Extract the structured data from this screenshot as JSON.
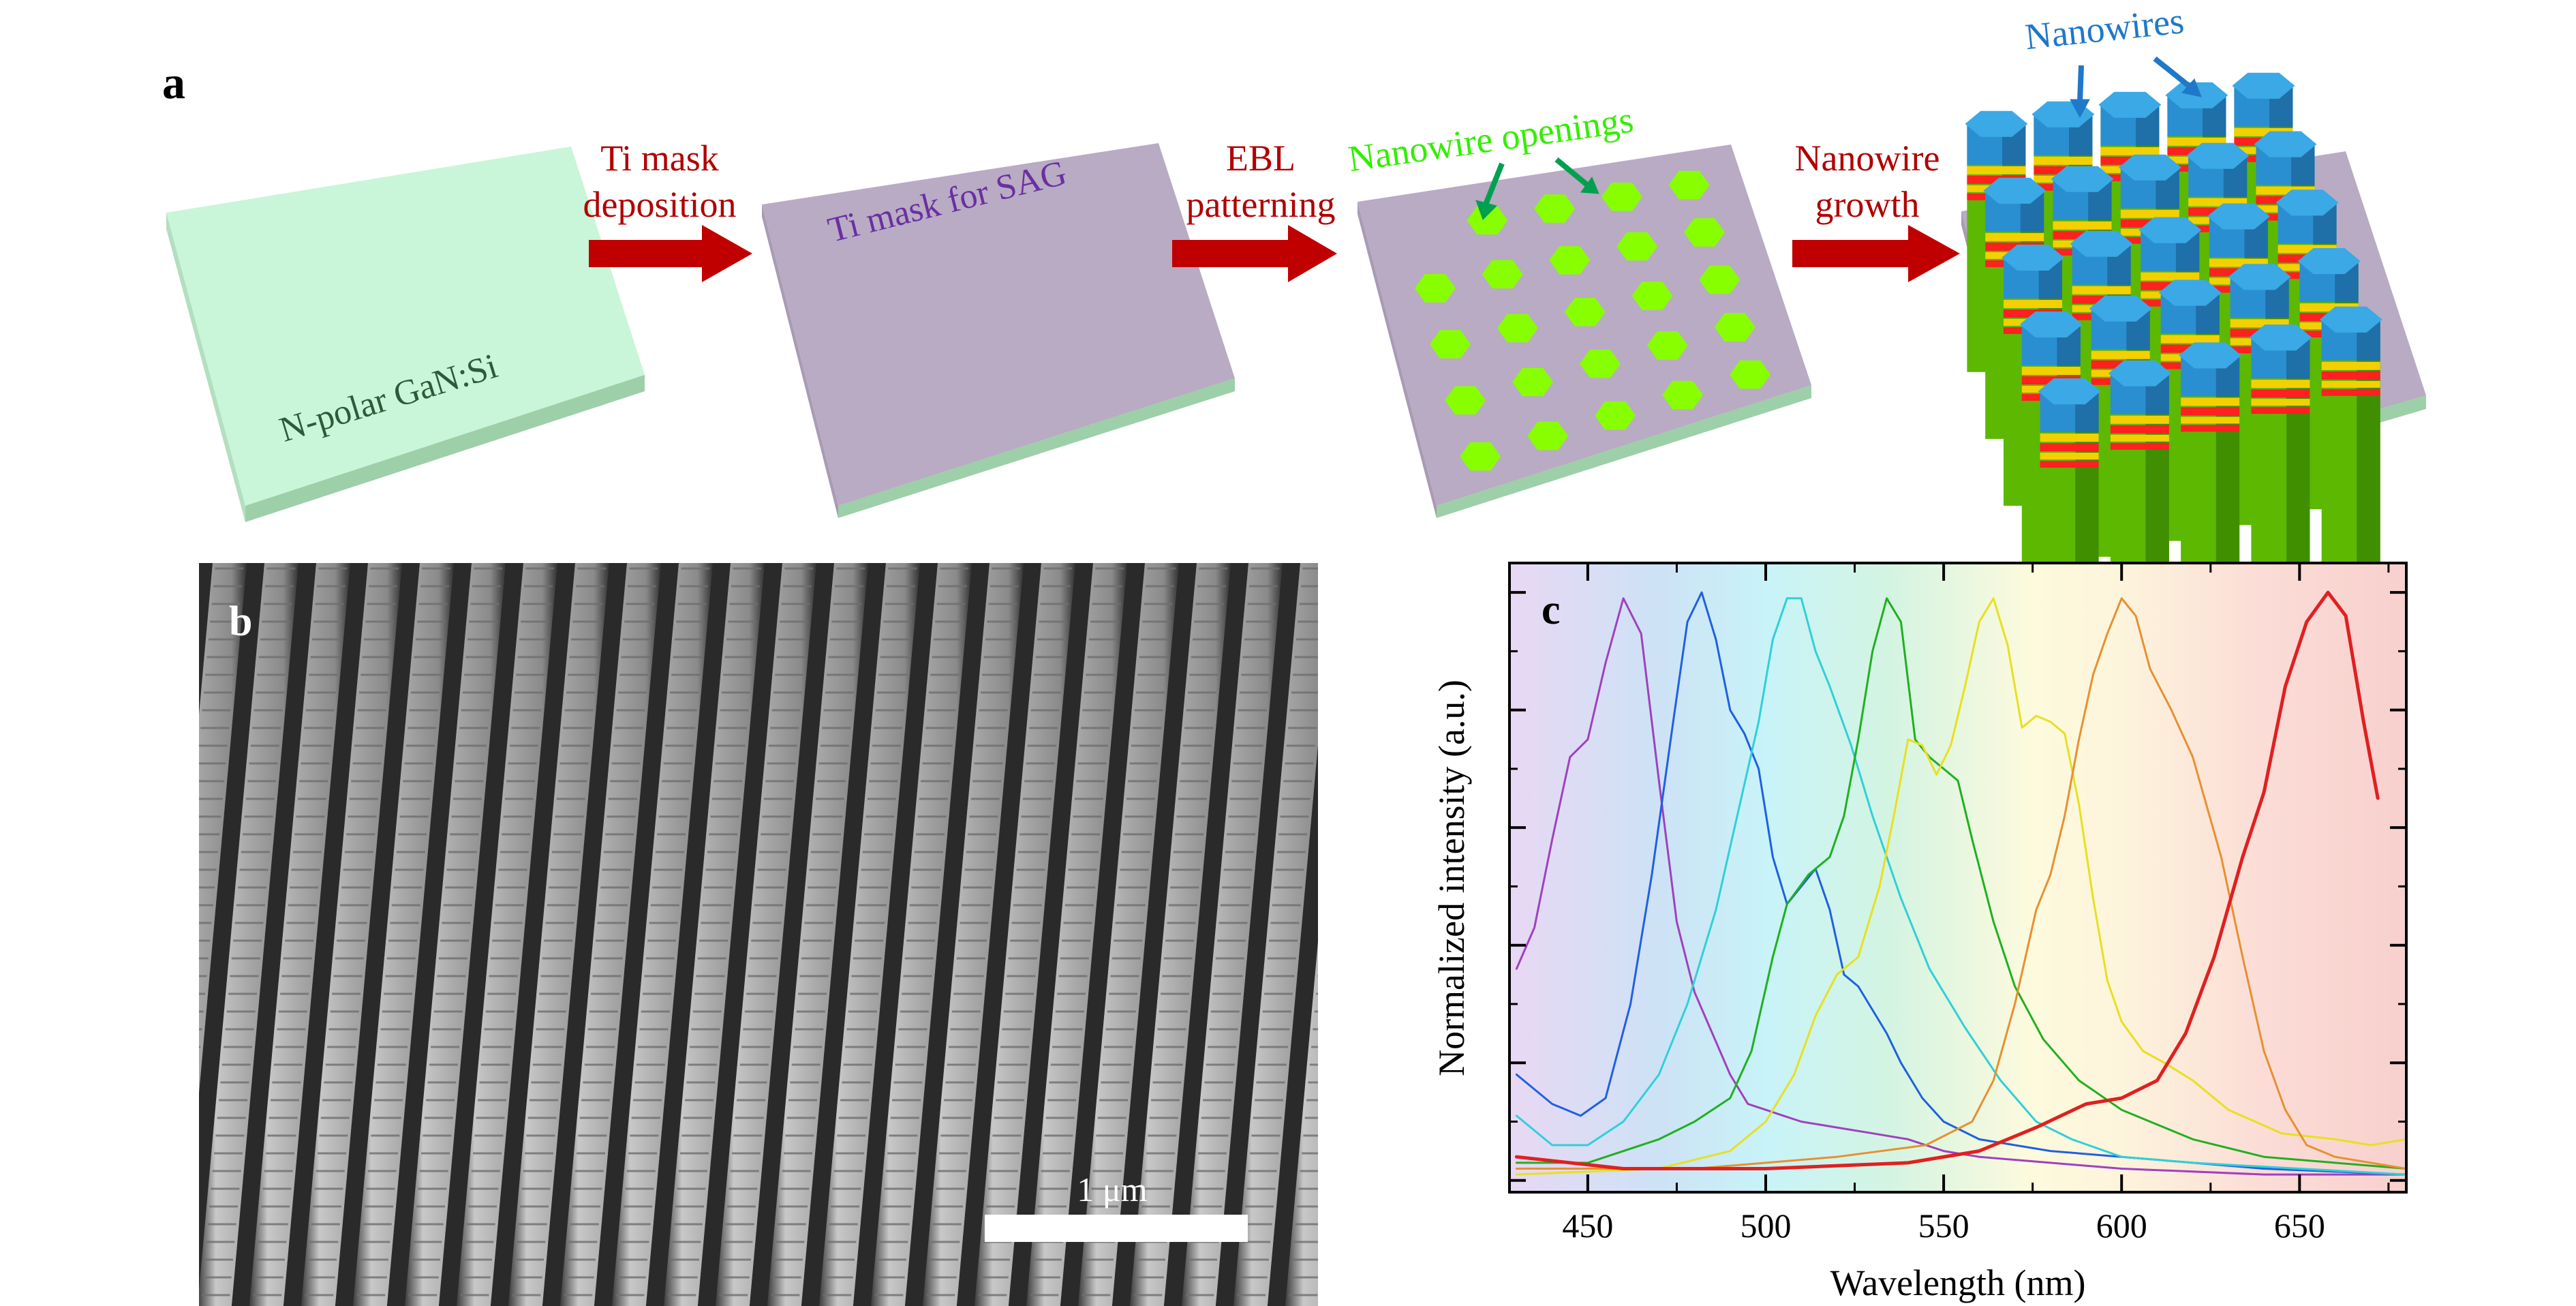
{
  "panel_a": {
    "letter": "a",
    "step1": {
      "substrate_label": "N-polar GaN:Si"
    },
    "arrow1": {
      "line1": "Ti mask",
      "line2": "deposition"
    },
    "step2": {
      "mask_label": "Ti mask for SAG"
    },
    "arrow2": {
      "line1": "EBL",
      "line2": "patterning"
    },
    "step3": {
      "openings_label": "Nanowire openings"
    },
    "arrow3": {
      "line1": "Nanowire",
      "line2": "growth"
    },
    "step4": {
      "nanowires_label": "Nanowires"
    },
    "colors": {
      "substrate": "#c9f5d8",
      "mask": "#b8abc3",
      "opening": "#88ff00",
      "arrow": "#c00000",
      "arrow_text": "#b00000",
      "mask_text": "#6a2fa3",
      "openings_text": "#33ee00",
      "nanowire_top": "#3aa9e6",
      "nanowire_body": "#5cb800",
      "quantum_well_red": "#ff2020",
      "quantum_well_yellow": "#f4d000",
      "callout_arrow_green": "#00a050",
      "callout_arrow_blue": "#1f78c8"
    }
  },
  "panel_b": {
    "letter": "b",
    "scale_bar_label": "1 μm"
  },
  "panel_c": {
    "letter": "c",
    "chart_data": {
      "type": "line",
      "xlabel": "Wavelength (nm)",
      "ylabel": "Normalized intensity (a.u.)",
      "xlim": [
        428,
        680
      ],
      "ylim": [
        -0.02,
        1.05
      ],
      "xticks": [
        450,
        500,
        550,
        600,
        650
      ],
      "grid": false,
      "series": [
        {
          "color": "#a040c0",
          "line_width": 3,
          "points": [
            [
              430,
              0.36
            ],
            [
              435,
              0.43
            ],
            [
              440,
              0.58
            ],
            [
              445,
              0.72
            ],
            [
              450,
              0.75
            ],
            [
              455,
              0.88
            ],
            [
              460,
              0.99
            ],
            [
              465,
              0.93
            ],
            [
              470,
              0.68
            ],
            [
              475,
              0.44
            ],
            [
              480,
              0.32
            ],
            [
              485,
              0.25
            ],
            [
              490,
              0.18
            ],
            [
              495,
              0.13
            ],
            [
              500,
              0.12
            ],
            [
              505,
              0.11
            ],
            [
              510,
              0.1
            ],
            [
              520,
              0.09
            ],
            [
              530,
              0.08
            ],
            [
              540,
              0.07
            ],
            [
              550,
              0.05
            ],
            [
              560,
              0.04
            ],
            [
              580,
              0.03
            ],
            [
              600,
              0.02
            ],
            [
              640,
              0.01
            ],
            [
              680,
              0.01
            ]
          ]
        },
        {
          "color": "#2060e0",
          "line_width": 3,
          "points": [
            [
              430,
              0.18
            ],
            [
              440,
              0.13
            ],
            [
              448,
              0.11
            ],
            [
              455,
              0.14
            ],
            [
              462,
              0.3
            ],
            [
              468,
              0.52
            ],
            [
              474,
              0.78
            ],
            [
              478,
              0.95
            ],
            [
              482,
              1.0
            ],
            [
              486,
              0.92
            ],
            [
              490,
              0.8
            ],
            [
              494,
              0.76
            ],
            [
              498,
              0.7
            ],
            [
              502,
              0.55
            ],
            [
              506,
              0.47
            ],
            [
              510,
              0.5
            ],
            [
              514,
              0.53
            ],
            [
              518,
              0.46
            ],
            [
              522,
              0.35
            ],
            [
              526,
              0.33
            ],
            [
              530,
              0.29
            ],
            [
              534,
              0.25
            ],
            [
              538,
              0.2
            ],
            [
              544,
              0.14
            ],
            [
              550,
              0.1
            ],
            [
              560,
              0.07
            ],
            [
              580,
              0.05
            ],
            [
              600,
              0.04
            ],
            [
              640,
              0.02
            ],
            [
              680,
              0.01
            ]
          ]
        },
        {
          "color": "#30d0d8",
          "line_width": 3,
          "points": [
            [
              430,
              0.11
            ],
            [
              440,
              0.06
            ],
            [
              450,
              0.06
            ],
            [
              460,
              0.1
            ],
            [
              470,
              0.18
            ],
            [
              478,
              0.3
            ],
            [
              486,
              0.46
            ],
            [
              492,
              0.62
            ],
            [
              498,
              0.78
            ],
            [
              502,
              0.92
            ],
            [
              506,
              0.99
            ],
            [
              510,
              0.99
            ],
            [
              514,
              0.9
            ],
            [
              518,
              0.84
            ],
            [
              524,
              0.74
            ],
            [
              530,
              0.62
            ],
            [
              538,
              0.48
            ],
            [
              546,
              0.36
            ],
            [
              556,
              0.26
            ],
            [
              566,
              0.17
            ],
            [
              576,
              0.1
            ],
            [
              586,
              0.07
            ],
            [
              600,
              0.04
            ],
            [
              620,
              0.03
            ],
            [
              650,
              0.02
            ],
            [
              680,
              0.01
            ]
          ]
        },
        {
          "color": "#20b020",
          "line_width": 3,
          "points": [
            [
              430,
              0.03
            ],
            [
              450,
              0.03
            ],
            [
              470,
              0.07
            ],
            [
              480,
              0.1
            ],
            [
              490,
              0.14
            ],
            [
              496,
              0.22
            ],
            [
              502,
              0.38
            ],
            [
              506,
              0.47
            ],
            [
              512,
              0.52
            ],
            [
              518,
              0.55
            ],
            [
              522,
              0.62
            ],
            [
              526,
              0.75
            ],
            [
              530,
              0.9
            ],
            [
              534,
              0.99
            ],
            [
              538,
              0.95
            ],
            [
              542,
              0.75
            ],
            [
              546,
              0.72
            ],
            [
              550,
              0.7
            ],
            [
              554,
              0.68
            ],
            [
              558,
              0.58
            ],
            [
              564,
              0.44
            ],
            [
              570,
              0.33
            ],
            [
              578,
              0.24
            ],
            [
              588,
              0.17
            ],
            [
              600,
              0.12
            ],
            [
              620,
              0.07
            ],
            [
              640,
              0.04
            ],
            [
              660,
              0.03
            ],
            [
              680,
              0.02
            ]
          ]
        },
        {
          "color": "#e8e020",
          "line_width": 3,
          "points": [
            [
              430,
              0.01
            ],
            [
              470,
              0.02
            ],
            [
              490,
              0.05
            ],
            [
              500,
              0.1
            ],
            [
              508,
              0.18
            ],
            [
              514,
              0.28
            ],
            [
              520,
              0.35
            ],
            [
              526,
              0.38
            ],
            [
              532,
              0.5
            ],
            [
              536,
              0.62
            ],
            [
              540,
              0.75
            ],
            [
              544,
              0.74
            ],
            [
              548,
              0.69
            ],
            [
              552,
              0.74
            ],
            [
              556,
              0.84
            ],
            [
              560,
              0.95
            ],
            [
              564,
              0.99
            ],
            [
              568,
              0.91
            ],
            [
              572,
              0.77
            ],
            [
              576,
              0.79
            ],
            [
              580,
              0.78
            ],
            [
              584,
              0.76
            ],
            [
              588,
              0.64
            ],
            [
              592,
              0.48
            ],
            [
              596,
              0.34
            ],
            [
              600,
              0.27
            ],
            [
              606,
              0.22
            ],
            [
              612,
              0.2
            ],
            [
              620,
              0.17
            ],
            [
              630,
              0.12
            ],
            [
              645,
              0.08
            ],
            [
              660,
              0.07
            ],
            [
              670,
              0.06
            ],
            [
              680,
              0.07
            ]
          ]
        },
        {
          "color": "#e89030",
          "line_width": 3,
          "points": [
            [
              430,
              0.02
            ],
            [
              480,
              0.02
            ],
            [
              520,
              0.04
            ],
            [
              545,
              0.06
            ],
            [
              558,
              0.1
            ],
            [
              564,
              0.17
            ],
            [
              570,
              0.3
            ],
            [
              576,
              0.46
            ],
            [
              580,
              0.52
            ],
            [
              584,
              0.62
            ],
            [
              588,
              0.75
            ],
            [
              592,
              0.86
            ],
            [
              596,
              0.93
            ],
            [
              600,
              0.99
            ],
            [
              604,
              0.96
            ],
            [
              608,
              0.87
            ],
            [
              614,
              0.8
            ],
            [
              620,
              0.72
            ],
            [
              628,
              0.55
            ],
            [
              634,
              0.38
            ],
            [
              640,
              0.22
            ],
            [
              646,
              0.12
            ],
            [
              652,
              0.06
            ],
            [
              660,
              0.04
            ],
            [
              680,
              0.02
            ]
          ]
        },
        {
          "color": "#e02020",
          "line_width": 5,
          "points": [
            [
              430,
              0.04
            ],
            [
              460,
              0.02
            ],
            [
              500,
              0.02
            ],
            [
              540,
              0.03
            ],
            [
              560,
              0.05
            ],
            [
              576,
              0.09
            ],
            [
              590,
              0.13
            ],
            [
              600,
              0.14
            ],
            [
              610,
              0.17
            ],
            [
              618,
              0.25
            ],
            [
              626,
              0.38
            ],
            [
              634,
              0.55
            ],
            [
              640,
              0.66
            ],
            [
              646,
              0.84
            ],
            [
              652,
              0.95
            ],
            [
              658,
              1.0
            ],
            [
              663,
              0.96
            ],
            [
              668,
              0.78
            ],
            [
              672,
              0.65
            ]
          ]
        }
      ]
    },
    "background_gradient": [
      {
        "wl": 428,
        "color": "#e8d8f4"
      },
      {
        "wl": 470,
        "color": "#cde2f5"
      },
      {
        "wl": 500,
        "color": "#c8f3f8"
      },
      {
        "wl": 535,
        "color": "#d4f4e2"
      },
      {
        "wl": 575,
        "color": "#fdfadd"
      },
      {
        "wl": 600,
        "color": "#fdf4dc"
      },
      {
        "wl": 640,
        "color": "#fbdcd6"
      },
      {
        "wl": 680,
        "color": "#f8d0cd"
      }
    ]
  }
}
